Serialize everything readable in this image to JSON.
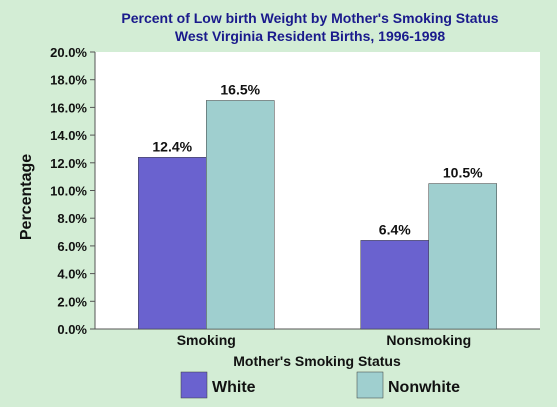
{
  "chart_data": {
    "type": "bar",
    "title": "Percent of Low birth Weight by Mother's Smoking Status",
    "subtitle": "West Virginia Resident Births, 1996-1998",
    "xlabel": "Mother's Smoking Status",
    "ylabel": "Percentage",
    "categories": [
      "Smoking",
      "Nonsmoking"
    ],
    "series": [
      {
        "name": "White",
        "color": "#6a62cf",
        "values": [
          12.4,
          6.4
        ],
        "labels": [
          "12.4%",
          "6.4%"
        ]
      },
      {
        "name": "Nonwhite",
        "color": "#9fcfcf",
        "values": [
          16.5,
          10.5
        ],
        "labels": [
          "16.5%",
          "10.5%"
        ]
      }
    ],
    "ylim": [
      0,
      20
    ],
    "yticks": [
      0,
      2,
      4,
      6,
      8,
      10,
      12,
      14,
      16,
      18,
      20
    ],
    "ytick_labels": [
      "0.0%",
      "2.0%",
      "4.0%",
      "6.0%",
      "8.0%",
      "10.0%",
      "12.0%",
      "14.0%",
      "16.0%",
      "18.0%",
      "20.0%"
    ],
    "grid": false,
    "legend": "bottom",
    "title_color": "#1a1a8c",
    "plot_background": "#ffffff",
    "page_background": "#d3edd5"
  }
}
